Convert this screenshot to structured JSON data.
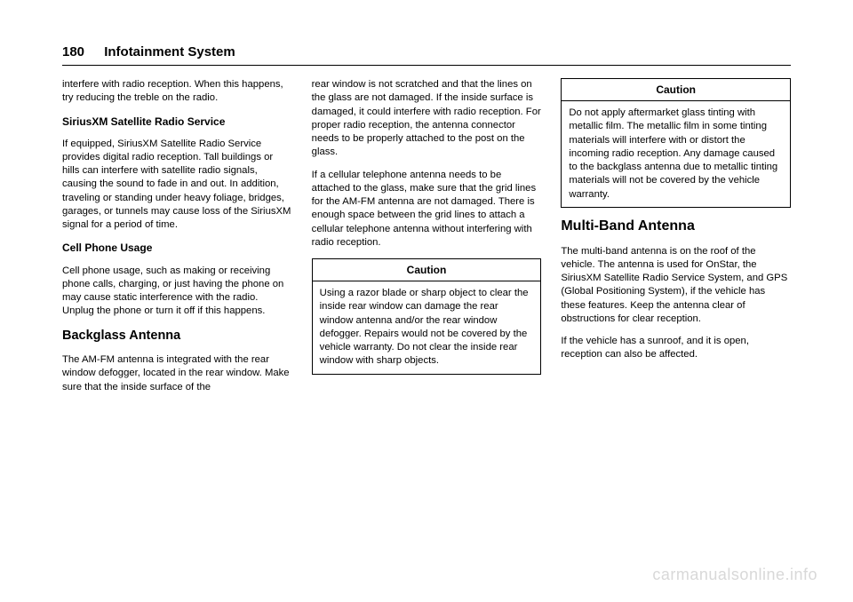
{
  "header": {
    "page_number": "180",
    "section": "Infotainment System"
  },
  "col1": {
    "p1": "interfere with radio reception. When this happens, try reducing the treble on the radio.",
    "h_sirius": "SiriusXM Satellite Radio Service",
    "p2": "If equipped, SiriusXM Satellite Radio Service provides digital radio reception. Tall buildings or hills can interfere with satellite radio signals, causing the sound to fade in and out. In addition, traveling or standing under heavy foliage, bridges, garages, or tunnels may cause loss of the SiriusXM signal for a period of time.",
    "h_cell": "Cell Phone Usage",
    "p3": "Cell phone usage, such as making or receiving phone calls, charging, or just having the phone on may cause static interference with the radio. Unplug the phone or turn it off if this happens.",
    "h_back": "Backglass Antenna",
    "p4": "The AM-FM antenna is integrated with the rear window defogger, located in the rear window. Make sure that the inside surface of the"
  },
  "col2": {
    "p1": "rear window is not scratched and that the lines on the glass are not damaged. If the inside surface is damaged, it could interfere with radio reception. For proper radio reception, the antenna connector needs to be properly attached to the post on the glass.",
    "p2": "If a cellular telephone antenna needs to be attached to the glass, make sure that the grid lines for the AM-FM antenna are not damaged. There is enough space between the grid lines to attach a cellular telephone antenna without interfering with radio reception.",
    "caution_title": "Caution",
    "caution_body": "Using a razor blade or sharp object to clear the inside rear window can damage the rear window antenna and/or the rear window defogger. Repairs would not be covered by the vehicle warranty. Do not clear the inside rear window with sharp objects."
  },
  "col3": {
    "caution_title": "Caution",
    "caution_body": "Do not apply aftermarket glass tinting with metallic film. The metallic film in some tinting materials will interfere with or distort the incoming radio reception. Any damage caused to the backglass antenna due to metallic tinting materials will not be covered by the vehicle warranty.",
    "h_multi": "Multi-Band Antenna",
    "p1": "The multi-band antenna is on the roof of the vehicle. The antenna is used for OnStar, the SiriusXM Satellite Radio Service System, and GPS (Global Positioning System), if the vehicle has these features. Keep the antenna clear of obstructions for clear reception.",
    "p2": "If the vehicle has a sunroof, and it is open, reception can also be affected."
  },
  "watermark": "carmanualsonline.info"
}
